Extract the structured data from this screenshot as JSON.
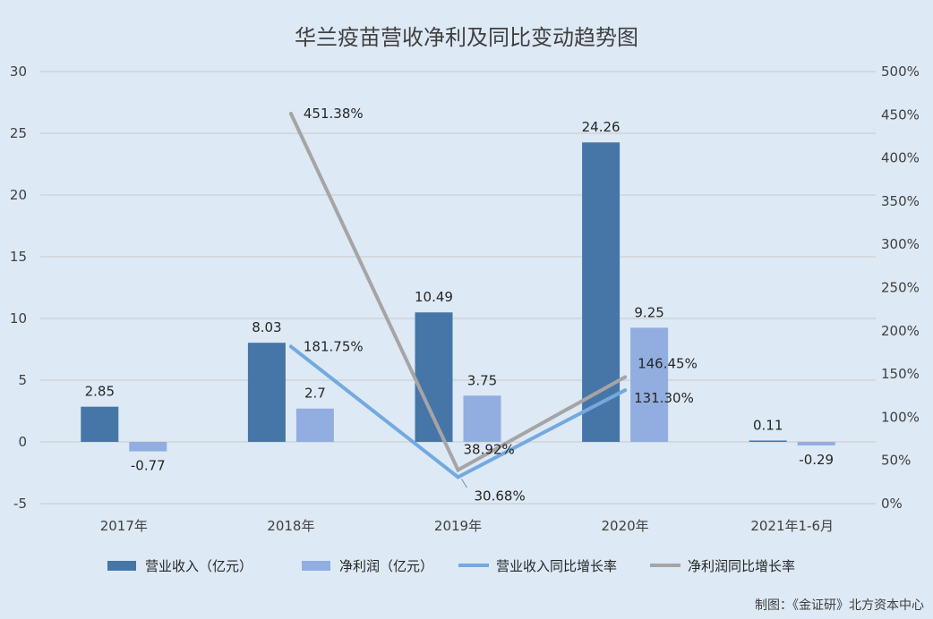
{
  "chart_data": {
    "type": "bar",
    "title": "华兰疫苗营收净利及同比变动趋势图",
    "categories": [
      "2017年",
      "2018年",
      "2019年",
      "2020年",
      "2021年1-6月"
    ],
    "y_left": {
      "min": -5,
      "max": 30,
      "step": 5,
      "ticks": [
        "-5",
        "0",
        "5",
        "10",
        "15",
        "20",
        "25",
        "30"
      ]
    },
    "y_right": {
      "min": 0,
      "max": 500,
      "step": 50,
      "ticks": [
        "0%",
        "50%",
        "100%",
        "150%",
        "200%",
        "250%",
        "300%",
        "350%",
        "400%",
        "450%",
        "500%"
      ]
    },
    "grid": true,
    "legend_position": "bottom",
    "series": [
      {
        "name": "营业收入（亿元）",
        "kind": "bar",
        "axis": "left",
        "color": "#4676a8",
        "values": [
          2.85,
          8.03,
          10.49,
          24.26,
          0.11
        ],
        "labels": [
          "2.85",
          "8.03",
          "10.49",
          "24.26",
          "0.11"
        ]
      },
      {
        "name": "净利润（亿元）",
        "kind": "bar",
        "axis": "left",
        "color": "#92aee0",
        "values": [
          -0.77,
          2.7,
          3.75,
          9.25,
          -0.29
        ],
        "labels": [
          "-0.77",
          "2.7",
          "3.75",
          "9.25",
          "-0.29"
        ]
      },
      {
        "name": "营业收入同比增长率",
        "kind": "line",
        "axis": "right",
        "color": "#74a9e0",
        "values": [
          null,
          181.75,
          30.68,
          131.3,
          null
        ],
        "labels": [
          null,
          "181.75%",
          "30.68%",
          "131.30%",
          null
        ]
      },
      {
        "name": "净利润同比增长率",
        "kind": "line",
        "axis": "right",
        "color": "#a5a5a5",
        "values": [
          null,
          451.38,
          38.92,
          146.45,
          null
        ],
        "labels": [
          null,
          "451.38%",
          "38.92%",
          "146.45%",
          null
        ]
      }
    ]
  },
  "credit": "制图：《金证研》北方资本中心"
}
